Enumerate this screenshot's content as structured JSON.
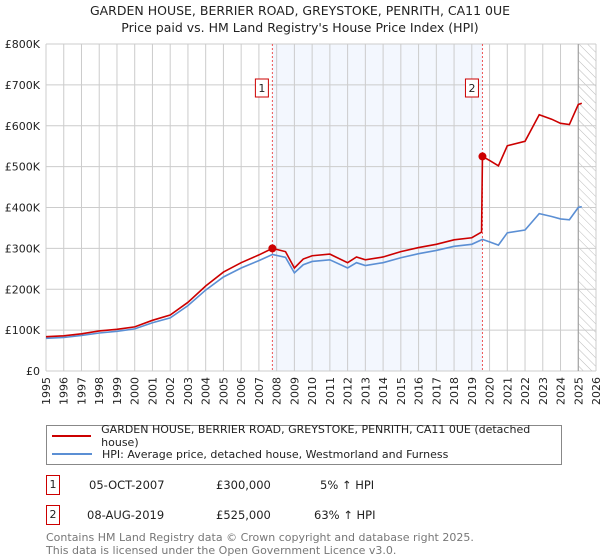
{
  "chart_data": {
    "type": "line",
    "title": "GARDEN HOUSE, BERRIER ROAD, GREYSTOKE, PENRITH, CA11 0UE",
    "subtitle": "Price paid vs. HM Land Registry's House Price Index (HPI)",
    "xlim": [
      1995,
      2026
    ],
    "ylim": [
      0,
      800000
    ],
    "x_ticks": [
      "1995",
      "1996",
      "1997",
      "1998",
      "1999",
      "2000",
      "2001",
      "2002",
      "2003",
      "2004",
      "2005",
      "2006",
      "2007",
      "2008",
      "2009",
      "2010",
      "2011",
      "2012",
      "2013",
      "2014",
      "2015",
      "2016",
      "2017",
      "2018",
      "2019",
      "2020",
      "2021",
      "2022",
      "2023",
      "2024",
      "2025",
      "2026"
    ],
    "y_ticks": [
      {
        "v": 0,
        "label": "£0"
      },
      {
        "v": 100000,
        "label": "£100K"
      },
      {
        "v": 200000,
        "label": "£200K"
      },
      {
        "v": 300000,
        "label": "£300K"
      },
      {
        "v": 400000,
        "label": "£400K"
      },
      {
        "v": 500000,
        "label": "£500K"
      },
      {
        "v": 600000,
        "label": "£600K"
      },
      {
        "v": 700000,
        "label": "£700K"
      },
      {
        "v": 800000,
        "label": "£800K"
      }
    ],
    "grid": true,
    "series": [
      {
        "name": "GARDEN HOUSE, BERRIER ROAD, GREYSTOKE, PENRITH, CA11 0UE (detached house)",
        "color": "#cc0000",
        "x": [
          1995,
          1996,
          1997,
          1998,
          1999,
          2000,
          2001,
          2002,
          2003,
          2004,
          2005,
          2006,
          2007,
          2007.76,
          2008.5,
          2009,
          2009.5,
          2010,
          2011,
          2012,
          2012.5,
          2013,
          2014,
          2015,
          2016,
          2017,
          2018,
          2019,
          2019.55,
          2019.6,
          2020,
          2020.5,
          2021,
          2022,
          2022.8,
          2023.5,
          2024,
          2024.5,
          2025,
          2025.2
        ],
        "y": [
          84000,
          86000,
          91000,
          98000,
          102000,
          108000,
          124000,
          137000,
          168000,
          208000,
          242000,
          265000,
          284000,
          300000,
          292000,
          252000,
          274000,
          282000,
          286000,
          265000,
          279000,
          272000,
          279000,
          292000,
          302000,
          310000,
          321000,
          326000,
          340000,
          525000,
          515000,
          502000,
          551000,
          562000,
          627000,
          616000,
          606000,
          603000,
          652000,
          655000
        ]
      },
      {
        "name": "HPI: Average price, detached house, Westmorland and Furness",
        "color": "#5b8fd4",
        "x": [
          1995,
          1996,
          1997,
          1998,
          1999,
          2000,
          2001,
          2002,
          2003,
          2004,
          2005,
          2006,
          2007,
          2007.76,
          2008.5,
          2009,
          2009.5,
          2010,
          2011,
          2012,
          2012.5,
          2013,
          2014,
          2015,
          2016,
          2017,
          2018,
          2019,
          2019.6,
          2020,
          2020.5,
          2021,
          2022,
          2022.8,
          2023.5,
          2024,
          2024.5,
          2025,
          2025.2
        ],
        "y": [
          80000,
          82000,
          87000,
          93000,
          97000,
          103000,
          118000,
          130000,
          160000,
          198000,
          230000,
          252000,
          270000,
          285000,
          278000,
          240000,
          260000,
          268000,
          272000,
          252000,
          265000,
          258000,
          265000,
          277000,
          287000,
          295000,
          305000,
          310000,
          322000,
          316000,
          308000,
          338000,
          345000,
          385000,
          378000,
          372000,
          370000,
          400000,
          402000
        ]
      }
    ],
    "annotations": [
      {
        "label": "1",
        "x": 2007.76,
        "y": 300000,
        "date": "05-OCT-2007",
        "price": "£300,000",
        "hpi": "5% ↑ HPI"
      },
      {
        "label": "2",
        "x": 2019.6,
        "y": 525000,
        "date": "08-AUG-2019",
        "price": "£525,000",
        "hpi": "63% ↑ HPI"
      }
    ],
    "forecast_from": 2025.0,
    "legend_position": "bottom"
  },
  "footer": {
    "line1": "Contains HM Land Registry data © Crown copyright and database right 2025.",
    "line2": "This data is licensed under the Open Government Licence v3.0."
  }
}
